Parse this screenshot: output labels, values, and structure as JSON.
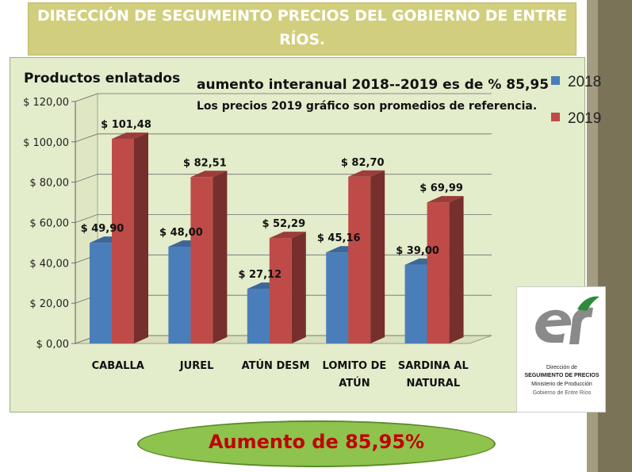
{
  "header": {
    "title": "DIRECCIÓN DE SEGUMEINTO PRECIOS DEL GOBIERNO DE ENTRE RÍOS."
  },
  "chart_data": {
    "type": "bar",
    "title": "Productos enlatados",
    "subtitle_line1": "aumento interanual 2018--2019 es de % 85,95",
    "subtitle_line2": "Los precios 2019 gráfico son promedios de referencia.",
    "categories": [
      "CABALLA",
      "JUREL",
      "ATÚN DESM",
      "LOMITO DE ATÚN",
      "SARDINA AL NATURAL"
    ],
    "series": [
      {
        "name": "2018",
        "values": [
          49.9,
          48.0,
          27.12,
          45.16,
          39.0
        ],
        "labels": [
          "$ 49,90",
          "$ 48,00",
          "$ 27,12",
          "$ 45,16",
          "$ 39,00"
        ],
        "color": "#4a7ebb"
      },
      {
        "name": "2019",
        "values": [
          101.48,
          82.51,
          52.29,
          82.7,
          69.99
        ],
        "labels": [
          "$ 101,48",
          "$ 82,51",
          "$ 52,29",
          "$ 82,70",
          "$ 69,99"
        ],
        "color": "#be4b48"
      }
    ],
    "ylim": [
      0,
      120
    ],
    "yticks": [
      "$ 0,00",
      "$ 20,00",
      "$ 40,00",
      "$ 60,00",
      "$ 80,00",
      "$ 100,00",
      "$ 120,00"
    ],
    "xlabel": "",
    "ylabel": "",
    "grid": true,
    "legend_position": "right",
    "style": "3d-clustered-bar"
  },
  "logo": {
    "line1": "Dirección de",
    "line2": "SEGUIMIENTO DE PRECIOS",
    "line3": "Ministerio de Producción",
    "line4": "Gobierno de Entre Ríos"
  },
  "banner": {
    "text": "Aumento de 85,95%"
  },
  "colors": {
    "header_bg": "#d1cf7e",
    "chart_bg": "#e3eccb",
    "bar_2018": "#4a7ebb",
    "bar_2019": "#be4b48",
    "banner_bg": "#8ec34e",
    "banner_text": "#c00000",
    "side_strip": "#7b7358"
  }
}
